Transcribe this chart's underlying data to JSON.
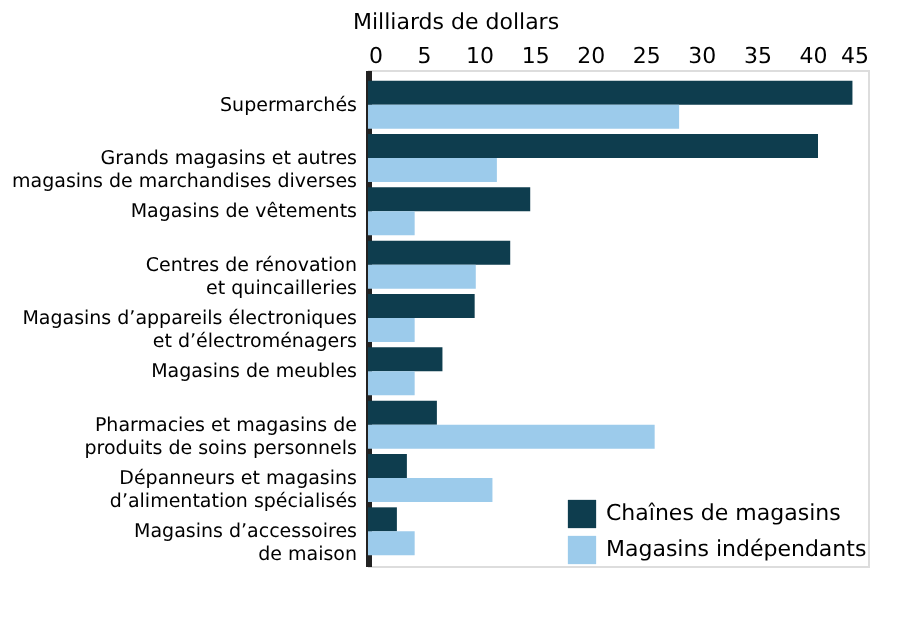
{
  "chart_data": {
    "type": "bar",
    "orientation": "horizontal",
    "xlabel": "Milliards de dollars",
    "categories": [
      "Supermarchés",
      "Grands magasins et autres\nmagasins de marchandises diverses",
      "Magasins de vêtements",
      "Centres de rénovation\net quincailleries",
      "Magasins d’appareils électroniques\net d’électroménagers",
      "Magasins de meubles",
      "Pharmacies et magasins de\nproduits de soins personnels",
      "Dépanneurs et magasins\nd’alimentation spécialisés",
      "Magasins d’accessoires\nde maison"
    ],
    "series": [
      {
        "name": "Chaînes de magasins",
        "color": "#0e3d4e",
        "values": [
          43.6,
          40.5,
          14.6,
          12.8,
          9.6,
          6.7,
          6.2,
          3.5,
          2.6
        ]
      },
      {
        "name": "Magasins indépendants",
        "color": "#9ccbeb",
        "values": [
          28.0,
          11.6,
          4.2,
          9.7,
          4.2,
          4.2,
          25.8,
          11.2,
          4.2
        ]
      }
    ],
    "xlim": [
      0,
      45
    ],
    "xticks": [
      0,
      5,
      10,
      15,
      20,
      25,
      30,
      35,
      40,
      45
    ],
    "grid": false,
    "legend": "bottom right"
  }
}
